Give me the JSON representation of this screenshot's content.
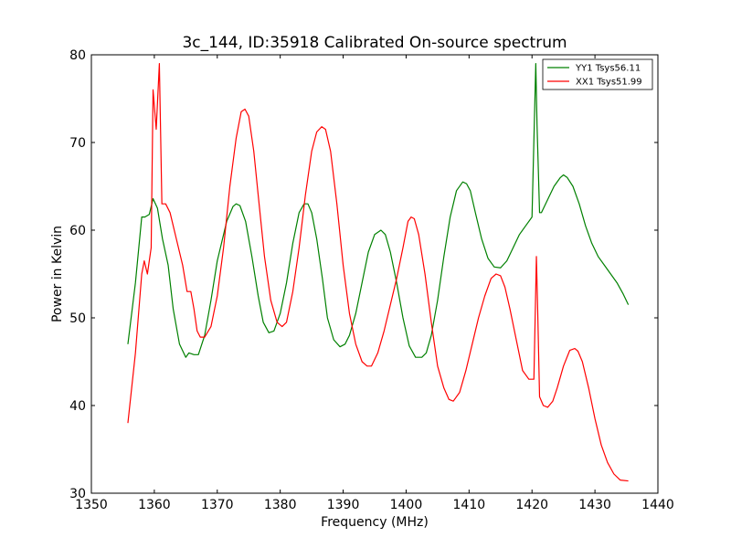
{
  "chart_data": {
    "type": "line",
    "title": "3c_144, ID:35918 Calibrated On-source spectrum",
    "xlabel": "Frequency (MHz)",
    "ylabel": "Power in Kelvin",
    "xlim": [
      1350,
      1440
    ],
    "ylim": [
      30,
      80
    ],
    "xticks": [
      1350,
      1360,
      1370,
      1380,
      1390,
      1400,
      1410,
      1420,
      1430,
      1440
    ],
    "yticks": [
      30,
      40,
      50,
      60,
      70,
      80
    ],
    "grid": false,
    "legend_position": "top-right",
    "series": [
      {
        "name": "YY1 Tsys56.11",
        "color": "#008000",
        "x": [
          1355.8,
          1357.0,
          1358.0,
          1358.5,
          1359.2,
          1359.8,
          1360.5,
          1361.3,
          1362.2,
          1363.0,
          1364.0,
          1365.0,
          1365.5,
          1366.3,
          1367.0,
          1368.0,
          1369.0,
          1370.0,
          1371.5,
          1372.5,
          1373.0,
          1373.6,
          1374.5,
          1375.5,
          1376.5,
          1377.3,
          1378.2,
          1379.0,
          1380.0,
          1381.0,
          1382.0,
          1383.0,
          1383.8,
          1384.4,
          1385.0,
          1385.8,
          1386.7,
          1387.5,
          1388.5,
          1389.5,
          1390.3,
          1391.0,
          1392.0,
          1393.0,
          1394.0,
          1395.0,
          1396.0,
          1396.7,
          1397.5,
          1398.5,
          1399.5,
          1400.5,
          1401.5,
          1402.5,
          1403.2,
          1404.0,
          1405.0,
          1406.0,
          1407.0,
          1408.0,
          1409.0,
          1409.6,
          1410.2,
          1411.0,
          1412.0,
          1413.0,
          1414.0,
          1415.0,
          1416.0,
          1417.0,
          1418.0,
          1419.0,
          1420.0,
          1420.6,
          1420.8,
          1421.2,
          1421.5,
          1422.5,
          1423.5,
          1424.5,
          1425.0,
          1425.6,
          1426.5,
          1427.5,
          1428.5,
          1429.5,
          1430.5,
          1431.5,
          1432.5,
          1433.5,
          1434.5,
          1435.3
        ],
        "values": [
          47.0,
          54.0,
          61.5,
          61.5,
          61.8,
          63.6,
          62.5,
          59.0,
          56.0,
          51.0,
          47.0,
          45.5,
          46.0,
          45.8,
          45.8,
          48.0,
          52.0,
          56.5,
          61.0,
          62.7,
          63.0,
          62.8,
          61.0,
          57.0,
          52.5,
          49.5,
          48.3,
          48.5,
          50.5,
          54.0,
          58.5,
          62.0,
          63.0,
          63.0,
          62.0,
          59.0,
          54.5,
          50.0,
          47.5,
          46.7,
          47.0,
          48.0,
          50.5,
          54.0,
          57.5,
          59.5,
          60.0,
          59.5,
          57.5,
          54.0,
          50.0,
          46.8,
          45.5,
          45.5,
          46.0,
          48.0,
          52.0,
          57.0,
          61.5,
          64.5,
          65.5,
          65.3,
          64.5,
          62.0,
          59.0,
          56.8,
          55.8,
          55.7,
          56.5,
          58.0,
          59.5,
          60.5,
          61.5,
          79.0,
          72.0,
          62.0,
          62.0,
          63.5,
          65.0,
          66.0,
          66.3,
          66.0,
          65.0,
          63.0,
          60.5,
          58.5,
          57.0,
          56.0,
          55.0,
          54.0,
          52.7,
          51.5
        ]
      },
      {
        "name": "XX1 Tsys51.99",
        "color": "#ff0000",
        "x": [
          1355.8,
          1357.0,
          1358.0,
          1358.4,
          1358.9,
          1359.5,
          1359.8,
          1360.3,
          1360.8,
          1361.2,
          1361.8,
          1362.5,
          1363.5,
          1364.5,
          1365.2,
          1365.8,
          1366.3,
          1366.8,
          1367.3,
          1368.0,
          1369.0,
          1370.0,
          1371.0,
          1372.0,
          1373.0,
          1373.8,
          1374.4,
          1375.0,
          1375.8,
          1376.5,
          1377.5,
          1378.5,
          1379.5,
          1380.3,
          1381.0,
          1382.0,
          1383.0,
          1384.0,
          1385.0,
          1385.8,
          1386.6,
          1387.2,
          1388.0,
          1389.0,
          1390.0,
          1391.0,
          1392.0,
          1393.0,
          1393.8,
          1394.5,
          1395.5,
          1396.5,
          1397.5,
          1398.5,
          1399.5,
          1400.3,
          1400.8,
          1401.3,
          1402.0,
          1403.0,
          1404.0,
          1405.0,
          1406.0,
          1406.8,
          1407.5,
          1408.5,
          1409.5,
          1410.5,
          1411.5,
          1412.5,
          1413.5,
          1414.3,
          1415.0,
          1415.7,
          1416.5,
          1417.5,
          1418.5,
          1419.5,
          1420.3,
          1420.7,
          1420.9,
          1421.2,
          1421.8,
          1422.5,
          1423.3,
          1424.0,
          1425.0,
          1426.0,
          1426.8,
          1427.3,
          1428.0,
          1429.0,
          1430.0,
          1431.0,
          1432.0,
          1433.0,
          1434.0,
          1435.3
        ],
        "values": [
          38.0,
          46.0,
          55.0,
          56.5,
          55.0,
          58.0,
          76.0,
          71.5,
          79.0,
          63.0,
          63.0,
          62.0,
          59.0,
          56.0,
          53.0,
          53.0,
          51.0,
          48.5,
          47.8,
          47.8,
          49.0,
          52.5,
          58.0,
          65.0,
          70.5,
          73.5,
          73.8,
          73.0,
          69.0,
          64.0,
          57.0,
          52.0,
          49.5,
          49.0,
          49.5,
          53.0,
          58.0,
          64.0,
          69.0,
          71.2,
          71.8,
          71.5,
          69.0,
          63.0,
          56.0,
          50.5,
          47.0,
          45.0,
          44.5,
          44.5,
          46.0,
          48.5,
          51.5,
          54.5,
          58.0,
          61.0,
          61.5,
          61.3,
          59.5,
          55.0,
          49.5,
          44.5,
          42.0,
          40.7,
          40.5,
          41.5,
          44.0,
          47.0,
          50.0,
          52.5,
          54.5,
          55.0,
          54.8,
          53.5,
          51.0,
          47.5,
          44.0,
          43.0,
          43.0,
          57.0,
          51.0,
          41.0,
          40.0,
          39.8,
          40.5,
          42.0,
          44.5,
          46.3,
          46.5,
          46.2,
          45.0,
          42.0,
          38.5,
          35.5,
          33.5,
          32.2,
          31.5,
          31.4
        ]
      }
    ]
  }
}
